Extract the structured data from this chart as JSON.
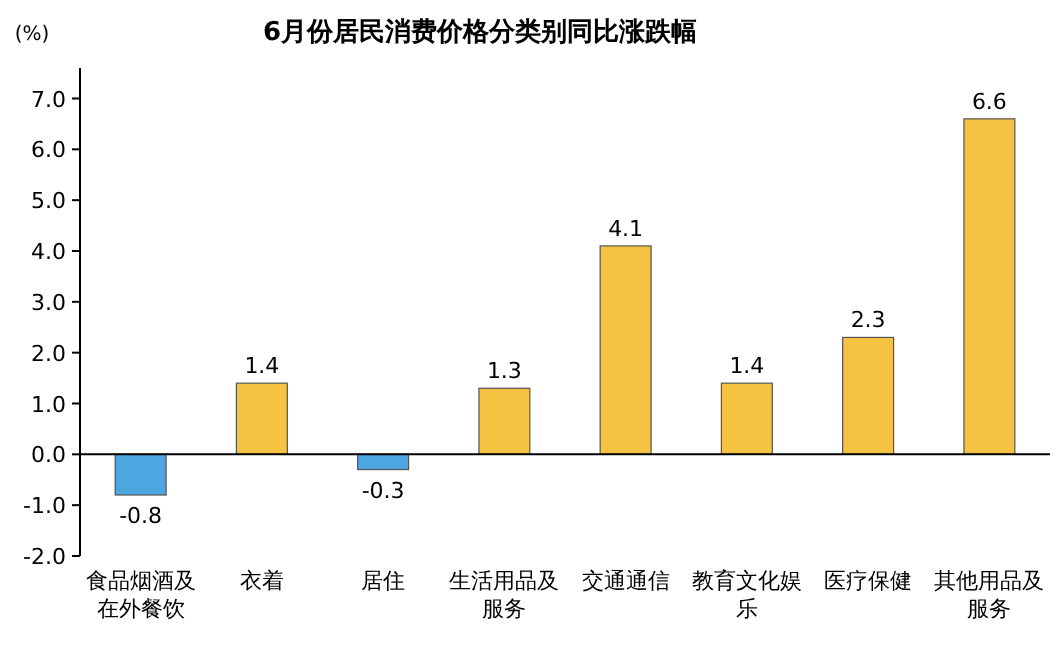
{
  "chart_data": {
    "type": "bar",
    "title": "6月份居民消费价格分类别同比涨跌幅",
    "ylabel": "(%)",
    "categories": [
      "食品烟酒及在外餐饮",
      "衣着",
      "居住",
      "生活用品及服务",
      "交通通信",
      "教育文化娱乐",
      "医疗保健",
      "其他用品及服务"
    ],
    "values": [
      -0.8,
      1.4,
      -0.3,
      1.3,
      4.1,
      1.4,
      2.3,
      6.6
    ],
    "colors": [
      "#4ea6e0",
      "#f5c242",
      "#4ea6e0",
      "#f5c242",
      "#f5c242",
      "#f5c242",
      "#f5c242",
      "#f5c242"
    ],
    "ylim": [
      -2,
      7.6
    ],
    "yticks": [
      {
        "value": -2,
        "label": "-2.0"
      },
      {
        "value": -1,
        "label": "-1.0"
      },
      {
        "value": 0,
        "label": "0.0"
      },
      {
        "value": 1,
        "label": "1.0"
      },
      {
        "value": 2,
        "label": "2.0"
      },
      {
        "value": 3,
        "label": "3.0"
      },
      {
        "value": 4,
        "label": "4.0"
      },
      {
        "value": 5,
        "label": "5.0"
      },
      {
        "value": 6,
        "label": "6.0"
      },
      {
        "value": 7,
        "label": "7.0"
      }
    ],
    "data_labels": true
  }
}
